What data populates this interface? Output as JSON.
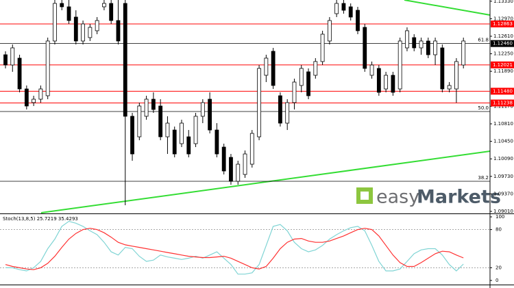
{
  "chart_data": [
    {
      "type": "candlestick",
      "open": [
        1.1223,
        1.12019,
        1.1216,
        1.11527,
        1.11246,
        1.11316,
        1.11387,
        1.12512,
        1.13285,
        1.13215,
        1.13004,
        1.12512,
        1.12582,
        1.12723,
        1.13215,
        1.13285,
        1.12933,
        1.13285,
        1.10965,
        1.10543,
        1.10965,
        1.11316,
        1.11176,
        1.10543,
        1.10683,
        1.10402,
        1.10543,
        1.10402,
        1.10965,
        1.11316,
        1.10683,
        1.10332,
        1.10121,
        1.09629,
        1.09769,
        1.0998,
        1.10543,
        1.11808,
        1.12301,
        1.11387,
        1.10824,
        1.11246,
        1.11598,
        1.11879,
        1.11808,
        1.1209,
        1.12512,
        1.13074,
        1.13285,
        1.13215,
        1.13144,
        1.12793,
        1.11808,
        1.11949,
        1.11527,
        1.11808,
        1.11527,
        1.12371,
        1.12582,
        1.12371,
        1.12512,
        1.1223,
        1.12371,
        1.11527,
        1.11527,
        1.12019
      ],
      "high": [
        1.12301,
        1.12441,
        1.1223,
        1.11598,
        1.11387,
        1.11598,
        1.12582,
        1.13355,
        1.13355,
        1.13355,
        1.13144,
        1.12933,
        1.12863,
        1.13004,
        1.13355,
        1.13355,
        1.13355,
        1.13355,
        1.11035,
        1.11246,
        1.11387,
        1.11457,
        1.11316,
        1.10965,
        1.10754,
        1.10894,
        1.10683,
        1.11035,
        1.11316,
        1.11457,
        1.10824,
        1.10402,
        1.10191,
        1.10051,
        1.10262,
        1.10683,
        1.12019,
        1.1223,
        1.12371,
        1.11457,
        1.11316,
        1.11738,
        1.12019,
        1.11949,
        1.1216,
        1.12723,
        1.13004,
        1.13355,
        1.13355,
        1.13285,
        1.13215,
        1.12863,
        1.1209,
        1.12019,
        1.11879,
        1.11879,
        1.12582,
        1.12793,
        1.12652,
        1.12582,
        1.12582,
        1.12582,
        1.12441,
        1.11668,
        1.1216,
        1.12582
      ],
      "low": [
        1.11949,
        1.11879,
        1.11457,
        1.11105,
        1.11176,
        1.11246,
        1.11316,
        1.12441,
        1.13144,
        1.12863,
        1.12441,
        1.12441,
        1.12512,
        1.12652,
        1.13144,
        1.12863,
        1.12441,
        1.09137,
        1.10051,
        1.10473,
        1.10894,
        1.11035,
        1.10473,
        1.10191,
        1.10121,
        1.10332,
        1.10121,
        1.10332,
        1.10824,
        1.10613,
        1.10121,
        1.09769,
        1.09558,
        1.09558,
        1.09699,
        1.0991,
        1.10473,
        1.11668,
        1.11527,
        1.10754,
        1.10683,
        1.11105,
        1.11457,
        1.11316,
        1.11738,
        1.12019,
        1.12441,
        1.13004,
        1.13074,
        1.12933,
        1.12652,
        1.11879,
        1.11738,
        1.11387,
        1.11457,
        1.11387,
        1.11457,
        1.12301,
        1.12301,
        1.1223,
        1.1216,
        1.12019,
        1.11457,
        1.11457,
        1.11246,
        1.11949
      ],
      "close": [
        1.12019,
        1.12371,
        1.11527,
        1.11176,
        1.11316,
        1.11527,
        1.12512,
        1.13285,
        1.13215,
        1.12933,
        1.12512,
        1.12863,
        1.12793,
        1.12933,
        1.13285,
        1.12933,
        1.12512,
        1.10965,
        1.10191,
        1.11176,
        1.11316,
        1.11105,
        1.10543,
        1.10824,
        1.10191,
        1.10824,
        1.10191,
        1.10965,
        1.11246,
        1.10683,
        1.10191,
        1.0984,
        1.09629,
        1.0998,
        1.10191,
        1.10613,
        1.11949,
        1.1216,
        1.11598,
        1.10824,
        1.11246,
        1.11668,
        1.11949,
        1.11387,
        1.1209,
        1.12652,
        1.12933,
        1.13285,
        1.13144,
        1.13004,
        1.12723,
        1.11949,
        1.12019,
        1.11457,
        1.11808,
        1.11457,
        1.12512,
        1.12723,
        1.12371,
        1.12512,
        1.1223,
        1.12512,
        1.11527,
        1.11598,
        1.1209,
        1.12512
      ],
      "bull_color": "#ffffff",
      "bear_color": "#000000",
      "ylim": [
        1.08968,
        1.13355
      ],
      "yticks": [
        {
          "value": 1.0901,
          "label": "1.09010"
        },
        {
          "value": 1.0937,
          "label": "1.09370"
        },
        {
          "value": 1.0973,
          "label": "1.09730"
        },
        {
          "value": 1.1009,
          "label": "1.10090"
        },
        {
          "value": 1.1045,
          "label": "1.10450"
        },
        {
          "value": 1.1081,
          "label": "1.10810"
        },
        {
          "value": 1.1117,
          "label": "1.11170"
        },
        {
          "value": 1.1189,
          "label": "1.11890"
        },
        {
          "value": 1.1225,
          "label": "1.12250"
        },
        {
          "value": 1.1261,
          "label": "1.12610"
        },
        {
          "value": 1.1297,
          "label": "1.12970"
        },
        {
          "value": 1.1333,
          "label": "1.13330"
        }
      ],
      "levels": [
        {
          "value": 1.12863,
          "color": "#ff0000"
        },
        {
          "value": 1.12021,
          "color": "#ff0000"
        },
        {
          "value": 1.1148,
          "label": "1.11480",
          "color": "#ff0000"
        },
        {
          "value": 1.11238,
          "color": "#ff0000"
        }
      ],
      "fib_levels": [
        {
          "value": 1.1246,
          "label": "61.8",
          "price_label": "1.12460"
        },
        {
          "value": 1.11063,
          "label": "50.0"
        },
        {
          "value": 1.09629,
          "label": "38.2"
        }
      ],
      "watermark": [
        "easy",
        "Markets"
      ]
    },
    {
      "type": "line",
      "title": "Stoch(13,8,5)",
      "series": [
        {
          "color": "#7fd4d4",
          "values": [
            20,
            20,
            17,
            15,
            20,
            30,
            50,
            65,
            85,
            93,
            90,
            85,
            78,
            72,
            60,
            45,
            40,
            52,
            50,
            38,
            30,
            32,
            40,
            37,
            35,
            33,
            35,
            38,
            35,
            40,
            45,
            35,
            25,
            10,
            10,
            12,
            25,
            55,
            85,
            88,
            78,
            60,
            50,
            45,
            48,
            55,
            65,
            72,
            78,
            83,
            85,
            78,
            55,
            30,
            15,
            15,
            18,
            30,
            42,
            48,
            50,
            50,
            40,
            25,
            15,
            25.7219
          ]
        },
        {
          "color": "#ff3030",
          "values": [
            25,
            22,
            20,
            18,
            17,
            20,
            27,
            38,
            52,
            65,
            74,
            80,
            82,
            80,
            75,
            68,
            60,
            56,
            54,
            52,
            50,
            48,
            46,
            44,
            42,
            40,
            38,
            37,
            36,
            36,
            37,
            38,
            35,
            30,
            25,
            20,
            18,
            22,
            35,
            50,
            60,
            65,
            66,
            62,
            60,
            60,
            62,
            66,
            70,
            75,
            80,
            82,
            80,
            70,
            55,
            40,
            28,
            22,
            22,
            28,
            35,
            42,
            46,
            45,
            40,
            35.4293
          ]
        }
      ],
      "ylim": [
        -6.5,
        104.3
      ],
      "yticks": [
        0,
        20,
        80,
        100
      ],
      "levels": [
        20,
        80
      ]
    }
  ]
}
